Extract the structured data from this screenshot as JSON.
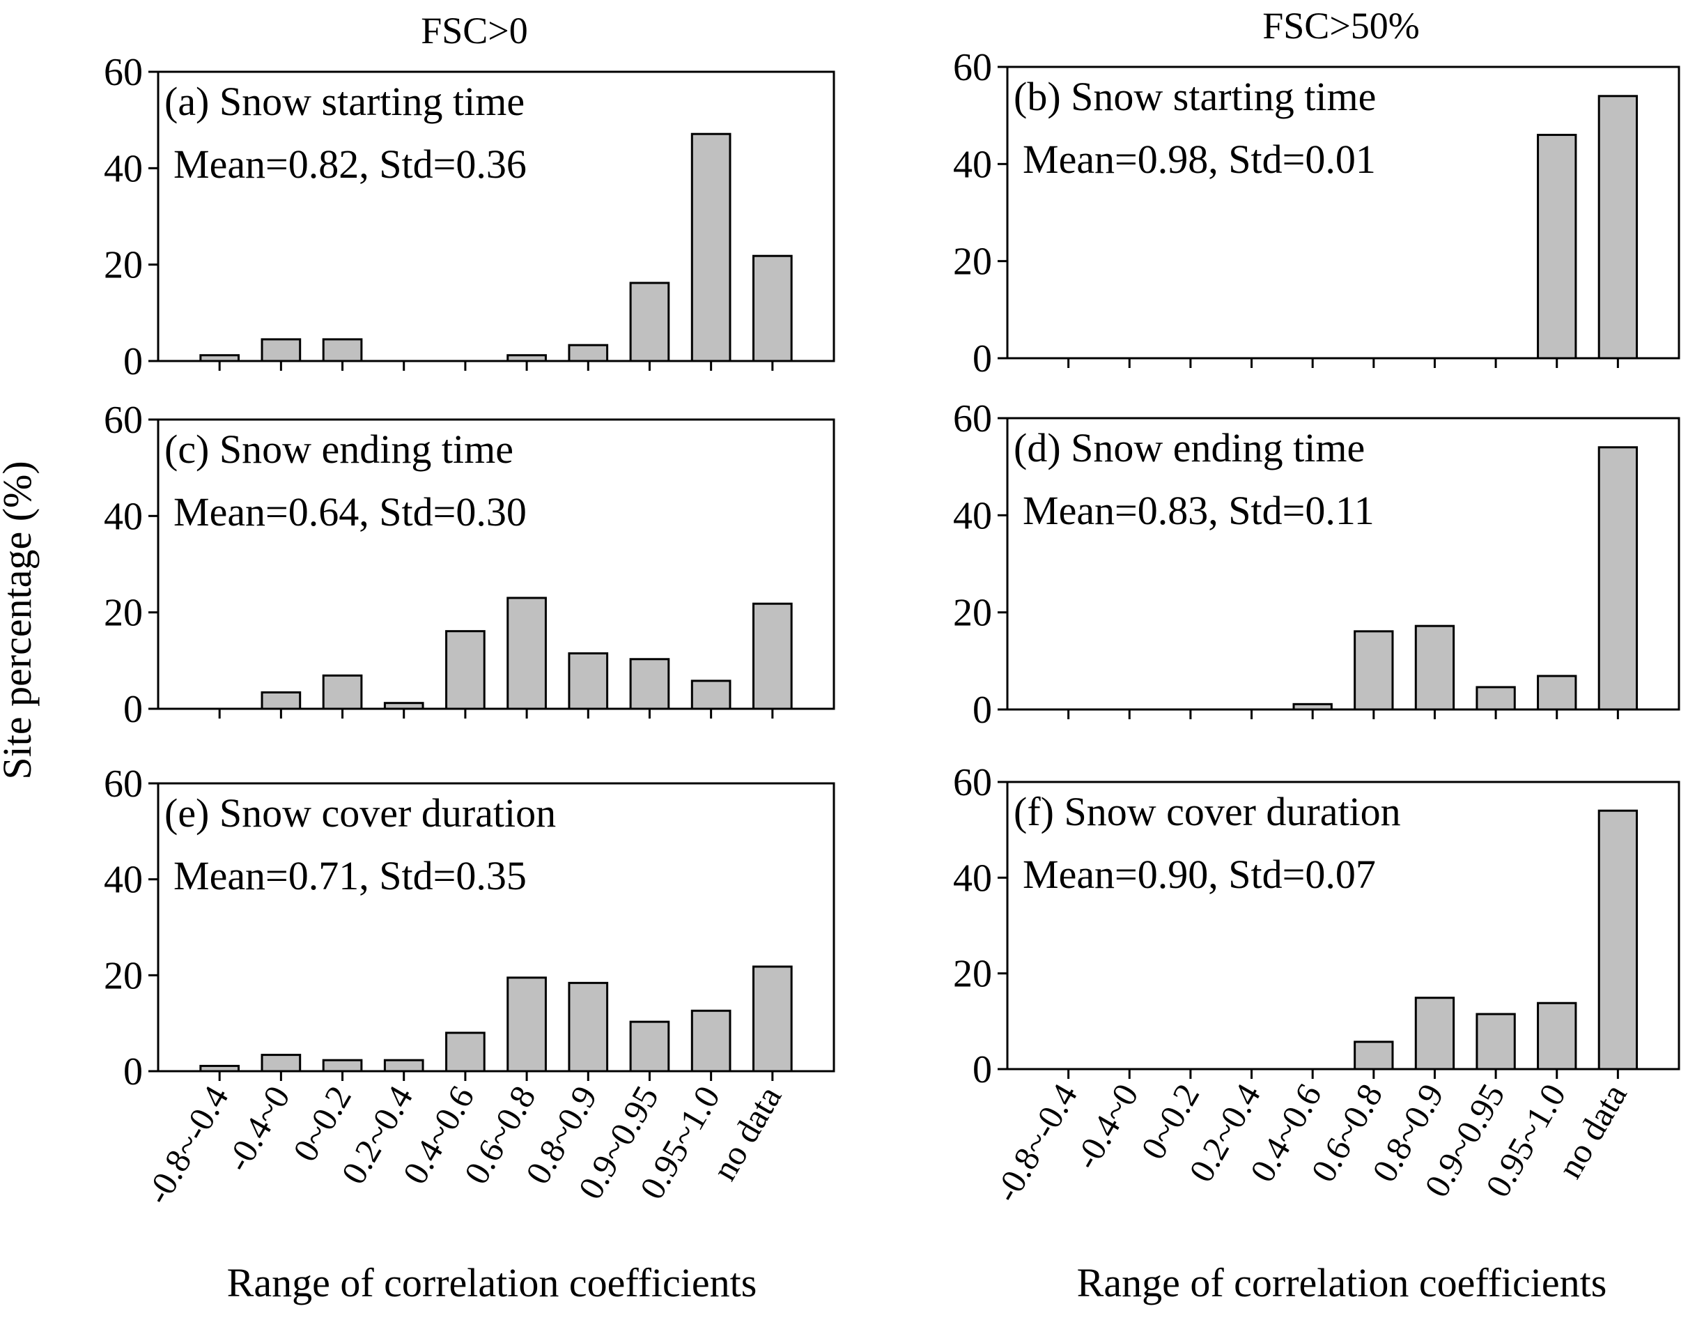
{
  "figure": {
    "column_titles": [
      "FSC>0",
      "FSC>50%"
    ],
    "ylabel": "Site percentage (%)",
    "xlabel": "Range of correlation coefficients",
    "colors": {
      "bar_fill": "#c0c0c0",
      "bar_stroke": "#000000"
    }
  },
  "chart_data": [
    {
      "type": "bar",
      "panel": "(a) Snow starting time",
      "stats": "Mean=0.82, Std=0.36",
      "categories": [
        "-0.8~-0.4",
        "-0.4~0",
        "0~0.2",
        "0.2~0.4",
        "0.4~0.6",
        "0.6~0.8",
        "0.8~0.9",
        "0.9~0.95",
        "0.95~1.0",
        "no data"
      ],
      "values": [
        1.2,
        4.5,
        4.5,
        0,
        0,
        1.2,
        3.3,
        16.2,
        47.1,
        21.8
      ],
      "ylim": [
        0,
        60
      ],
      "yticks": [
        0,
        20,
        40,
        60
      ]
    },
    {
      "type": "bar",
      "panel": "(b) Snow starting time",
      "stats": "Mean=0.98, Std=0.01",
      "categories": [
        "-0.8~-0.4",
        "-0.4~0",
        "0~0.2",
        "0.2~0.4",
        "0.4~0.6",
        "0.6~0.8",
        "0.8~0.9",
        "0.9~0.95",
        "0.95~1.0",
        "no data"
      ],
      "values": [
        0,
        0,
        0,
        0,
        0,
        0,
        0,
        0,
        46.0,
        54.0
      ],
      "ylim": [
        0,
        60
      ],
      "yticks": [
        0,
        20,
        40,
        60
      ]
    },
    {
      "type": "bar",
      "panel": "(c) Snow ending time",
      "stats": "Mean=0.64, Std=0.30",
      "categories": [
        "-0.8~-0.4",
        "-0.4~0",
        "0~0.2",
        "0.2~0.4",
        "0.4~0.6",
        "0.6~0.8",
        "0.8~0.9",
        "0.9~0.95",
        "0.95~1.0",
        "no data"
      ],
      "values": [
        0,
        3.4,
        6.9,
        1.2,
        16.1,
        23.0,
        11.5,
        10.3,
        5.8,
        21.8
      ],
      "ylim": [
        0,
        60
      ],
      "yticks": [
        0,
        20,
        40,
        60
      ]
    },
    {
      "type": "bar",
      "panel": "(d) Snow ending time",
      "stats": "Mean=0.83, Std=0.11",
      "categories": [
        "-0.8~-0.4",
        "-0.4~0",
        "0~0.2",
        "0.2~0.4",
        "0.4~0.6",
        "0.6~0.8",
        "0.8~0.9",
        "0.9~0.95",
        "0.95~1.0",
        "no data"
      ],
      "values": [
        0,
        0,
        0,
        0,
        1.1,
        16.1,
        17.2,
        4.6,
        6.9,
        54.0
      ],
      "ylim": [
        0,
        60
      ],
      "yticks": [
        0,
        20,
        40,
        60
      ]
    },
    {
      "type": "bar",
      "panel": "(e) Snow cover duration",
      "stats": "Mean=0.71, Std=0.35",
      "categories": [
        "-0.8~-0.4",
        "-0.4~0",
        "0~0.2",
        "0.2~0.4",
        "0.4~0.6",
        "0.6~0.8",
        "0.8~0.9",
        "0.9~0.95",
        "0.95~1.0",
        "no data"
      ],
      "values": [
        1.1,
        3.4,
        2.3,
        2.3,
        8.0,
        19.5,
        18.4,
        10.3,
        12.6,
        21.8
      ],
      "ylim": [
        0,
        60
      ],
      "yticks": [
        0,
        20,
        40,
        60
      ]
    },
    {
      "type": "bar",
      "panel": "(f) Snow cover duration",
      "stats": "Mean=0.90, Std=0.07",
      "categories": [
        "-0.8~-0.4",
        "-0.4~0",
        "0~0.2",
        "0.2~0.4",
        "0.4~0.6",
        "0.6~0.8",
        "0.8~0.9",
        "0.9~0.95",
        "0.95~1.0",
        "no data"
      ],
      "values": [
        0,
        0,
        0,
        0,
        0,
        5.7,
        14.9,
        11.5,
        13.8,
        54.0
      ],
      "ylim": [
        0,
        60
      ],
      "yticks": [
        0,
        20,
        40,
        60
      ]
    }
  ]
}
